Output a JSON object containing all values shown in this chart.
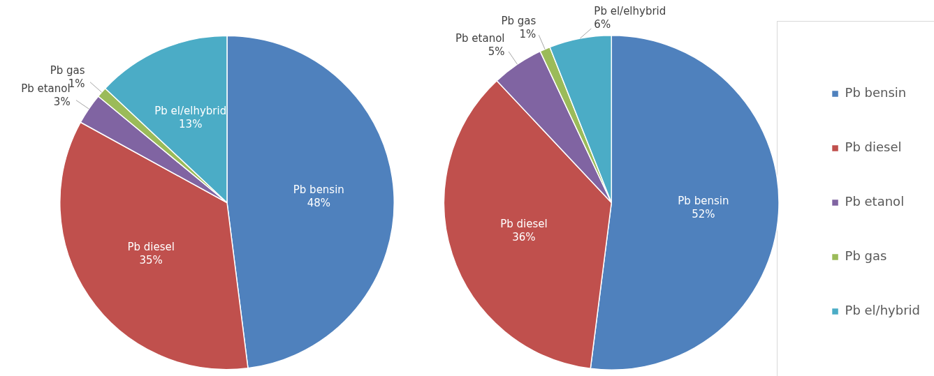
{
  "chart_data": [
    {
      "type": "pie",
      "categories": [
        "Pb bensin",
        "Pb diesel",
        "Pb etanol",
        "Pb gas",
        "Pb el/elhybrid"
      ],
      "values": [
        48,
        35,
        3,
        1,
        13
      ],
      "colors": [
        "#4f81bd",
        "#c0504d",
        "#8064a2",
        "#9bbb59",
        "#4bacc6"
      ],
      "value_labels": [
        "48%",
        "35%",
        "3%",
        "1%",
        "13%"
      ],
      "legend": false
    },
    {
      "type": "pie",
      "categories": [
        "Pb bensin",
        "Pb diesel",
        "Pb etanol",
        "Pb gas",
        "Pb el/hybrid"
      ],
      "values": [
        52,
        36,
        5,
        1,
        6
      ],
      "colors": [
        "#4f81bd",
        "#c0504d",
        "#8064a2",
        "#9bbb59",
        "#4bacc6"
      ],
      "value_labels": [
        "Pb bensin\n52%",
        "Pb diesel\n36%",
        "Pb etanol\n5%",
        "Pb gas\n1%",
        "Pb el/elhybrid\n6%"
      ],
      "legend": "right"
    }
  ]
}
